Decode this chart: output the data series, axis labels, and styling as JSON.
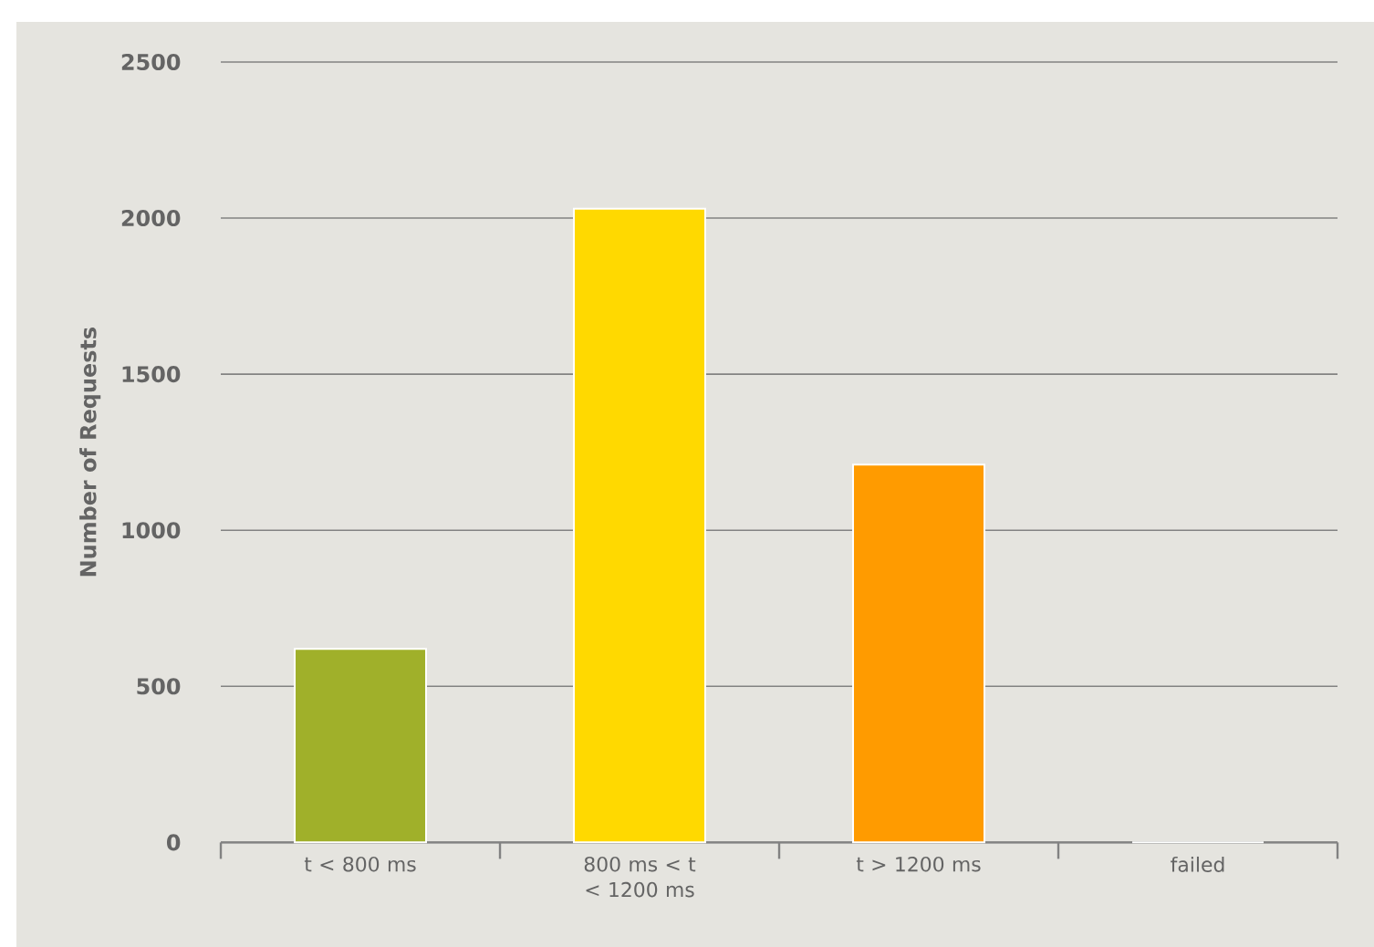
{
  "chart_data": {
    "type": "bar",
    "ylabel": "Number of Requests",
    "categories": [
      "t < 800 ms",
      "800 ms < t < 1200 ms",
      "t > 1200 ms",
      "failed"
    ],
    "values": [
      620,
      2030,
      1210,
      0
    ],
    "colors": [
      "#a0b02a",
      "#ffd900",
      "#ff9b00",
      "#aaaaaa"
    ],
    "ylim": [
      0,
      2500
    ],
    "yticks": [
      0,
      500,
      1000,
      1500,
      2000,
      2500
    ],
    "grid": "y"
  }
}
